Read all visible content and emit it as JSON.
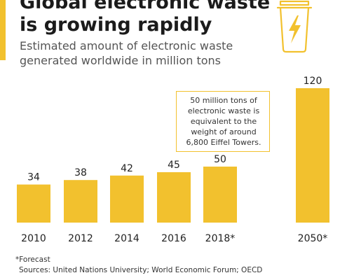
{
  "header": {
    "title": "Global electronic waste\nis growing rapidly",
    "subtitle": "Estimated amount of electronic waste generated worldwide in million tons"
  },
  "colors": {
    "accent": "#f2c12e",
    "bar": "#f2c12e",
    "text": "#222222"
  },
  "icon": {
    "name": "trash-bin-lightning-icon"
  },
  "annotation": {
    "text": "50 million tons of electronic waste is equivalent to the weight of around 6,800 Eiffel Towers."
  },
  "footnote": {
    "forecast": "*Forecast",
    "sources": "Sources: United Nations University; World Economic Forum; OECD"
  },
  "chart_data": {
    "type": "bar",
    "title": "Global electronic waste is growing rapidly",
    "subtitle": "Estimated amount of electronic waste generated worldwide in million tons",
    "categories": [
      "2010",
      "2012",
      "2014",
      "2016",
      "2018*",
      "2050*"
    ],
    "values": [
      34,
      38,
      42,
      45,
      50,
      120
    ],
    "value_labels": [
      "34",
      "38",
      "42",
      "45",
      "50",
      "120"
    ],
    "ylim": [
      0,
      120
    ],
    "grid": false,
    "legend": "none",
    "xlabel": "",
    "ylabel": ""
  }
}
